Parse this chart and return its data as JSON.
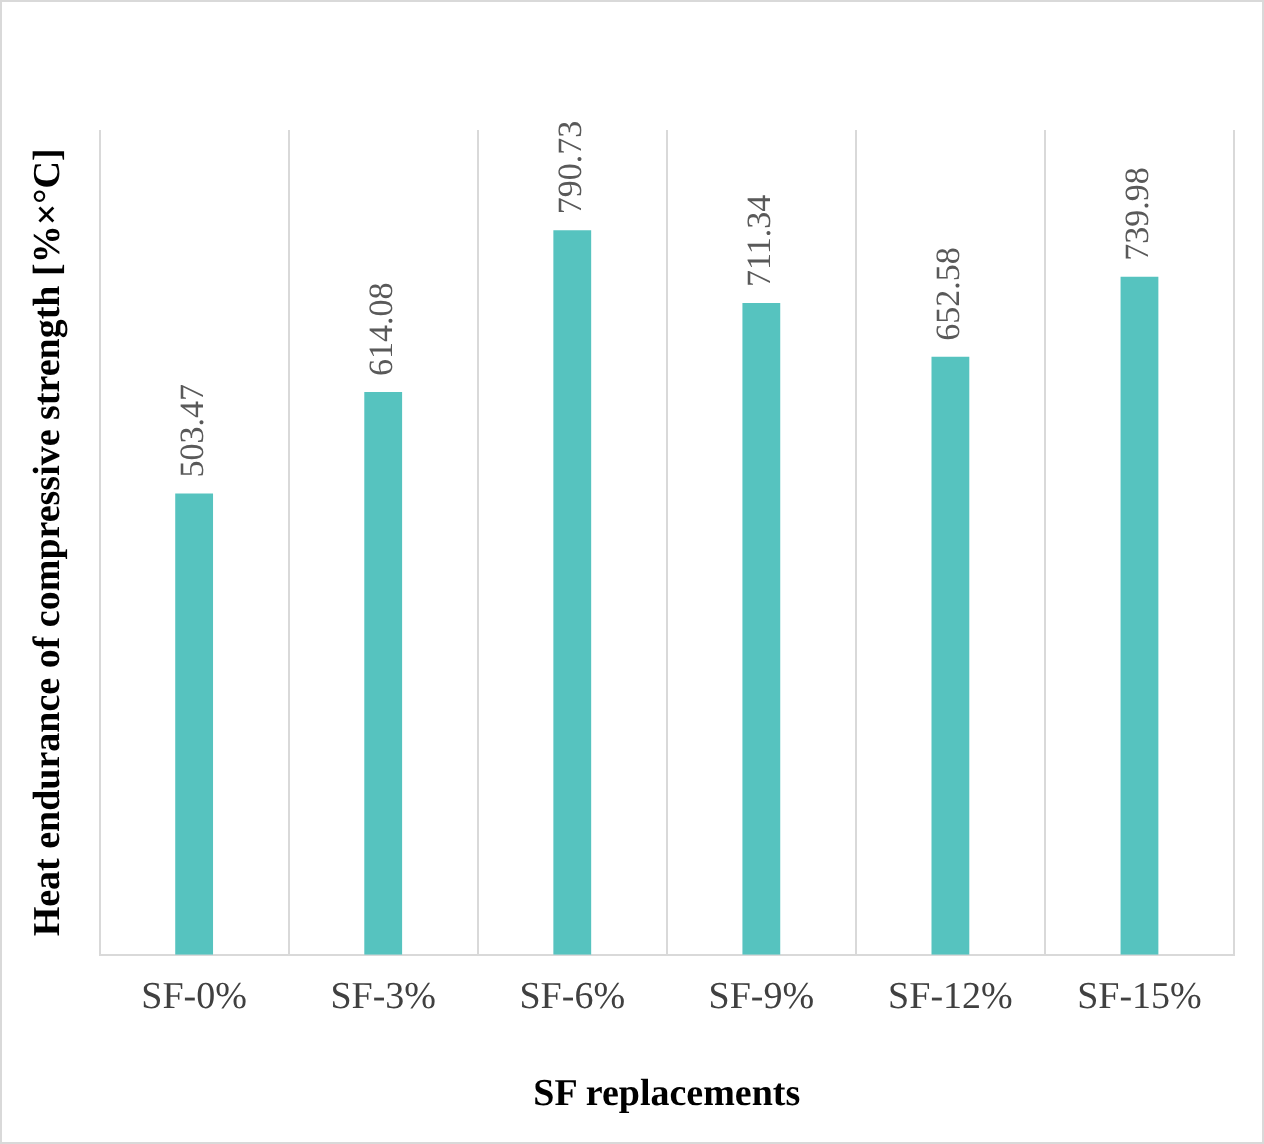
{
  "chart_data": {
    "type": "bar",
    "xlabel": "SF replacements",
    "ylabel": "Heat endurance of compressive strength [%×°C]",
    "categories": [
      "SF-0%",
      "SF-3%",
      "SF-6%",
      "SF-9%",
      "SF-12%",
      "SF-15%"
    ],
    "values": [
      503.47,
      614.08,
      790.73,
      711.34,
      652.58,
      739.98
    ],
    "color": "#56c3bf",
    "ylim": [
      0,
      900
    ],
    "tick_labels": "x",
    "grid": "x",
    "data_labels": true
  }
}
